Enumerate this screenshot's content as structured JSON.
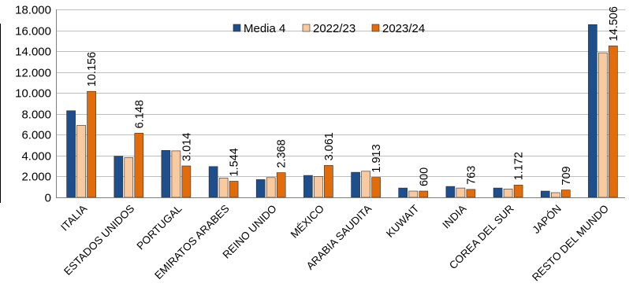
{
  "colors": {
    "media": "#1F4E8C",
    "y2223": "#F9C9A0",
    "y2324": "#E36C0A",
    "bar_outline": "#2b2b2b",
    "grid": "#bfbfbf"
  },
  "chart_data": {
    "type": "bar",
    "title": "",
    "xlabel": "",
    "ylabel": "",
    "ylim": [
      0,
      18000
    ],
    "y_ticks": [
      "0",
      "2.000",
      "4.000",
      "6.000",
      "8.000",
      "10.000",
      "12.000",
      "14.000",
      "16.000",
      "18.000"
    ],
    "grid": "horizontal",
    "legend_position": "top-center",
    "categories": [
      "ITALIA",
      "ESTADOS UNIDOS",
      "PORTUGAL",
      "EMIRATOS ARABES",
      "REINO UNIDO",
      "MÉXICO",
      "ARABIA SAUDITA",
      "KUWAIT",
      "INDIA",
      "COREA DEL SUR",
      "JAPÓN",
      "RESTO DEL MUNDO"
    ],
    "series": [
      {
        "name": "Media 4",
        "values": [
          8300,
          3950,
          4500,
          2950,
          1700,
          2100,
          2400,
          900,
          1050,
          900,
          600,
          16550
        ]
      },
      {
        "name": "2022/23",
        "values": [
          6900,
          3800,
          4450,
          1850,
          1900,
          2000,
          2500,
          600,
          900,
          800,
          450,
          13850
        ]
      },
      {
        "name": "2023/24",
        "values": [
          10156,
          6148,
          3014,
          1544,
          2368,
          3061,
          1913,
          600,
          763,
          1172,
          709,
          14506
        ]
      }
    ],
    "data_labels": [
      "10.156",
      "6.148",
      "3.014",
      "1.544",
      "2.368",
      "3.061",
      "1.913",
      "600",
      "763",
      "1.172",
      "709",
      "14.506"
    ]
  }
}
